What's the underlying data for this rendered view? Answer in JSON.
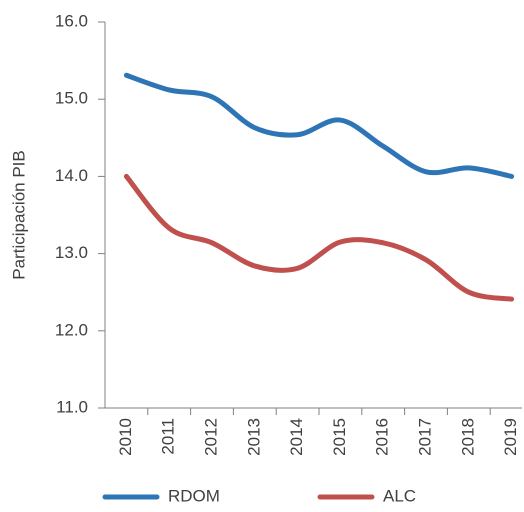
{
  "chart_data": {
    "type": "line",
    "ylabel": "Participación PIB",
    "categories": [
      "2010",
      "2011",
      "2012",
      "2013",
      "2014",
      "2015",
      "2016",
      "2017",
      "2018",
      "2019"
    ],
    "series": [
      {
        "name": "RDOM",
        "color": "#2e75b6",
        "values": [
          15.31,
          15.12,
          15.03,
          14.63,
          14.54,
          14.73,
          14.39,
          14.06,
          14.11,
          14.0
        ]
      },
      {
        "name": "ALC",
        "color": "#c0504d",
        "values": [
          14.0,
          13.33,
          13.14,
          12.84,
          12.81,
          13.15,
          13.14,
          12.92,
          12.5,
          12.41
        ]
      }
    ],
    "ylim": [
      11,
      16
    ],
    "yticks": [
      {
        "value": 11,
        "label": "11.0"
      },
      {
        "value": 12,
        "label": "12.0"
      },
      {
        "value": 13,
        "label": "13.0"
      },
      {
        "value": 14,
        "label": "14.0"
      },
      {
        "value": 15,
        "label": "15.0"
      },
      {
        "value": 16,
        "label": "16.0"
      }
    ],
    "grid": false,
    "legend": "bottom"
  }
}
